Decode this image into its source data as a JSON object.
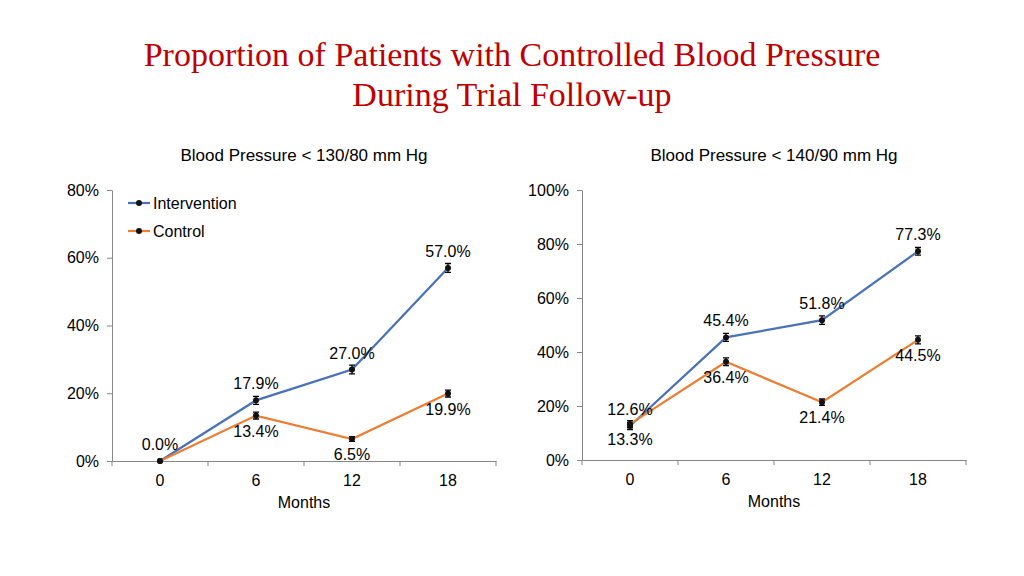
{
  "title": [
    "Proportion of Patients with Controlled Blood Pressure",
    "During Trial Follow-up"
  ],
  "chart_data": [
    {
      "type": "line",
      "title": "Blood Pressure < 130/80 mm Hg",
      "x_label": "Months",
      "categories": [
        "0",
        "6",
        "12",
        "18"
      ],
      "series": [
        {
          "name": "Intervention",
          "color": "#4a72b8",
          "marker": "circle",
          "values": [
            0,
            17.9,
            27.0,
            57.0
          ],
          "errors": [
            0,
            1.2,
            1.3,
            1.3
          ],
          "value_labels": [
            "0.0%",
            "17.9%",
            "27.0%",
            "57.0%"
          ]
        },
        {
          "name": "Control",
          "color": "#ed7d31",
          "marker": "circle",
          "values": [
            0,
            13.4,
            6.5,
            19.9
          ],
          "errors": [
            0,
            1.0,
            0.7,
            1.0
          ],
          "value_labels": [
            null,
            "13.4%",
            "6.5%",
            "19.9%"
          ]
        }
      ],
      "ylim": [
        0,
        80
      ],
      "yticks": [
        {
          "value": 0,
          "label": "0%"
        },
        {
          "value": 20,
          "label": "20%"
        },
        {
          "value": 40,
          "label": "40%"
        },
        {
          "value": 60,
          "label": "60%"
        },
        {
          "value": 80,
          "label": "80%"
        }
      ],
      "grid": false,
      "legend": "top-left",
      "data_labels": true
    },
    {
      "type": "line",
      "title": "Blood Pressure < 140/90 mm Hg",
      "x_label": "Months",
      "categories": [
        "0",
        "6",
        "12",
        "18"
      ],
      "series": [
        {
          "name": "Intervention",
          "color": "#4a72b8",
          "marker": "circle",
          "values": [
            12.6,
            45.4,
            51.8,
            77.3
          ],
          "errors": [
            1.3,
            1.5,
            1.6,
            1.4
          ],
          "value_labels": [
            "12.6%",
            "45.4%",
            "51.8%",
            "77.3%"
          ]
        },
        {
          "name": "Control",
          "color": "#ed7d31",
          "marker": "circle",
          "values": [
            13.3,
            36.4,
            21.4,
            44.5
          ],
          "errors": [
            1.3,
            1.4,
            1.2,
            1.5
          ],
          "value_labels": [
            "13.3%",
            "36.4%",
            "21.4%",
            "44.5%"
          ]
        }
      ],
      "ylim": [
        0,
        100
      ],
      "yticks": [
        {
          "value": 0,
          "label": "0%"
        },
        {
          "value": 20,
          "label": "20%"
        },
        {
          "value": 40,
          "label": "40%"
        },
        {
          "value": 60,
          "label": "60%"
        },
        {
          "value": 80,
          "label": "80%"
        },
        {
          "value": 100,
          "label": "100%"
        }
      ],
      "grid": false,
      "data_labels": true
    }
  ]
}
